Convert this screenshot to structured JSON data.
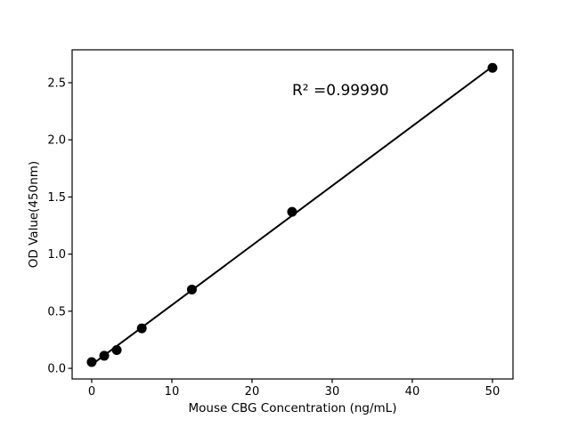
{
  "figure": {
    "background_color": "#ffffff",
    "foreground_color": "#000000"
  },
  "chart_data": {
    "type": "scatter",
    "title": "",
    "xlabel": "Mouse CBG Concentration (ng/mL)",
    "ylabel": "OD Value(450nm)",
    "series": [
      {
        "name": "standard-curve-points",
        "x": [
          0,
          1.5625,
          3.125,
          6.25,
          12.5,
          25,
          50
        ],
        "y": [
          0.055,
          0.11,
          0.16,
          0.35,
          0.69,
          1.37,
          2.63
        ]
      }
    ],
    "fit_line": {
      "slope": 0.0522,
      "intercept": 0.032,
      "x_start": 0,
      "x_end": 50
    },
    "annotation": {
      "text": "R² =0.99990",
      "x": 25,
      "y": 2.38
    },
    "xticks": [
      0,
      10,
      20,
      30,
      40,
      50
    ],
    "xtick_labels": [
      "0",
      "10",
      "20",
      "30",
      "40",
      "50"
    ],
    "yticks": [
      0.0,
      0.5,
      1.0,
      1.5,
      2.0,
      2.5
    ],
    "ytick_labels": [
      "0.0",
      "0.5",
      "1.0",
      "1.5",
      "2.0",
      "2.5"
    ],
    "xlim": [
      -2.44,
      52.56
    ],
    "ylim": [
      -0.093,
      2.788
    ],
    "grid": false,
    "legend": "none",
    "marker_color": "#000000",
    "marker_radius": 5.5,
    "line_color": "#000000",
    "line_width": 2,
    "frame_color": "#000000"
  }
}
